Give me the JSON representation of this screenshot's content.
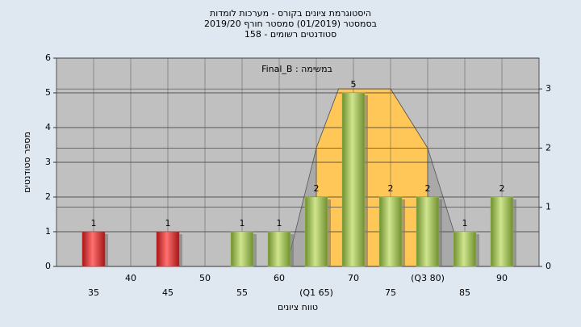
{
  "chart_data": {
    "type": "bar",
    "title_lines": [
      "היסטוגרמת ציונים בקורס - מערכות לומדות",
      "בסמסטר  (01/2019)  סמסטר חורף 2019/20",
      "סטודנטים רשומים - 158"
    ],
    "annotation": "Final_B : במשימה",
    "xlabel": "טווח ציונים",
    "ylabel": "מספר סטודנטים",
    "x": [
      35,
      45,
      55,
      60,
      65,
      70,
      75,
      80,
      85,
      90
    ],
    "values": [
      1,
      1,
      1,
      1,
      2,
      5,
      2,
      2,
      1,
      2
    ],
    "colors": [
      "#e03030",
      "#e03030",
      "#9cc45a",
      "#9cc45a",
      "#9cc45a",
      "#9cc45a",
      "#9cc45a",
      "#9cc45a",
      "#9cc45a",
      "#9cc45a"
    ],
    "xlim": [
      30,
      95
    ],
    "xticks": [
      35,
      40,
      45,
      50,
      55,
      60,
      {
        "value": 65,
        "label": "(Q1 65)"
      },
      70,
      75,
      {
        "value": 80,
        "label": "(Q3 80)"
      },
      85,
      90
    ],
    "ylim": [
      0,
      6
    ],
    "yticks": [
      0,
      1,
      2,
      3,
      4,
      5,
      6
    ],
    "y2lim": [
      0,
      3.52
    ],
    "y2ticks": [
      0,
      1,
      2,
      3
    ],
    "grid": true,
    "areas": [
      {
        "axis": "y2",
        "color": "#a9a9a9",
        "x": [
          61,
          65,
          68,
          75,
          80,
          85
        ],
        "values": [
          0,
          2,
          3,
          3,
          2,
          0
        ]
      },
      {
        "axis": "y2",
        "color": "#ffc758",
        "x": [
          65,
          65,
          68,
          75,
          80,
          80
        ],
        "values": [
          0,
          2,
          3,
          3,
          2,
          0
        ]
      }
    ]
  }
}
